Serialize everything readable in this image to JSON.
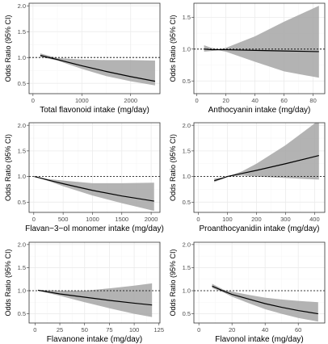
{
  "chart_data": [
    {
      "type": "line",
      "ylabel": "Odds Ratio (95% CI)",
      "xlabel": "Total flavonoid intake (mg/day)",
      "xlim": [
        -80,
        2600
      ],
      "ylim": [
        0.3,
        2.05
      ],
      "xticks": [
        0,
        1000,
        2000
      ],
      "xtick_labels": [
        "0",
        "1000",
        "2000"
      ],
      "yticks": [
        0.5,
        1.0,
        1.5,
        2.0
      ],
      "ytick_labels": [
        "0.5",
        "1.0",
        "1.5",
        "2.0"
      ],
      "reference_y": 1.0,
      "series": [
        {
          "x": [
            150,
            500,
            1000,
            1500,
            2000,
            2500
          ],
          "y": [
            1.04,
            0.96,
            0.84,
            0.73,
            0.63,
            0.54
          ],
          "lower": [
            1.01,
            0.94,
            0.78,
            0.64,
            0.54,
            0.46
          ],
          "upper": [
            1.08,
            0.99,
            0.96,
            0.95,
            0.95,
            0.94
          ]
        }
      ]
    },
    {
      "type": "line",
      "ylabel": "Odds Ratio (95% CI)",
      "xlabel": "Anthocyanin intake (mg/day)",
      "xlim": [
        -2,
        88
      ],
      "ylim": [
        0.3,
        1.72
      ],
      "xticks": [
        0,
        20,
        40,
        60,
        80
      ],
      "xtick_labels": [
        "0",
        "20",
        "40",
        "60",
        "80"
      ],
      "yticks": [
        0.5,
        1.0,
        1.5
      ],
      "ytick_labels": [
        "0.5",
        "1.0",
        "1.5"
      ],
      "reference_y": 1.0,
      "series": [
        {
          "x": [
            5,
            10,
            15,
            20,
            40,
            60,
            84
          ],
          "y": [
            1.0,
            0.99,
            0.99,
            0.99,
            0.98,
            0.97,
            0.96
          ],
          "lower": [
            0.96,
            0.97,
            0.98,
            0.96,
            0.8,
            0.65,
            0.55
          ],
          "upper": [
            1.06,
            1.02,
            1.0,
            1.02,
            1.2,
            1.43,
            1.68
          ]
        }
      ]
    },
    {
      "type": "line",
      "ylabel": "Odds Ratio (95% CI)",
      "xlabel": "Flavan−3−ol monomer intake (mg/day)",
      "xlim": [
        -80,
        2150
      ],
      "ylim": [
        0.3,
        2.05
      ],
      "xticks": [
        0,
        500,
        1000,
        1500,
        2000
      ],
      "xtick_labels": [
        "0",
        "500",
        "1000",
        "1500",
        "2000"
      ],
      "yticks": [
        0.5,
        1.0,
        1.5,
        2.0
      ],
      "ytick_labels": [
        "0.5",
        "1.0",
        "1.5",
        "2.0"
      ],
      "reference_y": 1.0,
      "series": [
        {
          "x": [
            10,
            250,
            500,
            1000,
            1500,
            2050
          ],
          "y": [
            1.0,
            0.93,
            0.86,
            0.73,
            0.62,
            0.52
          ],
          "lower": [
            1.0,
            0.91,
            0.81,
            0.63,
            0.48,
            0.33
          ],
          "upper": [
            1.0,
            0.95,
            0.92,
            0.87,
            0.87,
            0.88
          ]
        }
      ]
    },
    {
      "type": "line",
      "ylabel": "Odds Ratio (95% CI)",
      "xlabel": "Proanthocyanidin intake (mg/day)",
      "xlim": [
        -15,
        435
      ],
      "ylim": [
        0.3,
        2.05
      ],
      "xticks": [
        0,
        100,
        200,
        300,
        400
      ],
      "xtick_labels": [
        "0",
        "100",
        "200",
        "300",
        "400"
      ],
      "yticks": [
        0.5,
        1.0,
        1.5,
        2.0
      ],
      "ytick_labels": [
        "0.5",
        "1.0",
        "1.5",
        "2.0"
      ],
      "reference_y": 1.0,
      "series": [
        {
          "x": [
            55,
            80,
            100,
            150,
            200,
            300,
            415
          ],
          "y": [
            0.92,
            0.96,
            1.0,
            1.06,
            1.12,
            1.25,
            1.41
          ],
          "lower": [
            0.89,
            0.95,
            1.0,
            1.02,
            1.0,
            0.97,
            0.94
          ],
          "upper": [
            0.96,
            0.98,
            1.0,
            1.1,
            1.25,
            1.61,
            2.1
          ]
        }
      ]
    },
    {
      "type": "line",
      "ylabel": "Odds Ratio (95% CI)",
      "xlabel": "Flavanone intake (mg/day)",
      "xlim": [
        -6,
        126
      ],
      "ylim": [
        0.3,
        2.05
      ],
      "xticks": [
        0,
        25,
        50,
        75,
        100,
        125
      ],
      "xtick_labels": [
        "0",
        "25",
        "50",
        "75",
        "100",
        "125"
      ],
      "yticks": [
        0.5,
        1.0,
        1.5,
        2.0
      ],
      "ytick_labels": [
        "0.5",
        "1.0",
        "1.5",
        "2.0"
      ],
      "reference_y": 1.0,
      "series": [
        {
          "x": [
            3,
            25,
            50,
            75,
            100,
            118
          ],
          "y": [
            1.01,
            0.93,
            0.86,
            0.79,
            0.73,
            0.69
          ],
          "lower": [
            1.0,
            0.89,
            0.75,
            0.62,
            0.5,
            0.43
          ],
          "upper": [
            1.02,
            1.0,
            1.0,
            1.05,
            1.11,
            1.16
          ]
        }
      ]
    },
    {
      "type": "line",
      "ylabel": "Odds Ratio (95% CI)",
      "xlabel": "Flavonol intake (mg/day)",
      "xlim": [
        -3,
        76
      ],
      "ylim": [
        0.3,
        2.05
      ],
      "xticks": [
        0,
        20,
        40,
        60
      ],
      "xtick_labels": [
        "0",
        "20",
        "40",
        "60"
      ],
      "yticks": [
        0.5,
        1.0,
        1.5,
        2.0
      ],
      "ytick_labels": [
        "0.5",
        "1.0",
        "1.5",
        "2.0"
      ],
      "reference_y": 1.0,
      "series": [
        {
          "x": [
            8,
            15,
            20,
            30,
            40,
            50,
            60,
            72
          ],
          "y": [
            1.1,
            0.99,
            0.92,
            0.82,
            0.72,
            0.64,
            0.57,
            0.5
          ],
          "lower": [
            1.06,
            0.96,
            0.87,
            0.73,
            0.6,
            0.5,
            0.41,
            0.33
          ],
          "upper": [
            1.15,
            1.02,
            0.98,
            0.91,
            0.85,
            0.81,
            0.78,
            0.75
          ]
        }
      ]
    }
  ]
}
